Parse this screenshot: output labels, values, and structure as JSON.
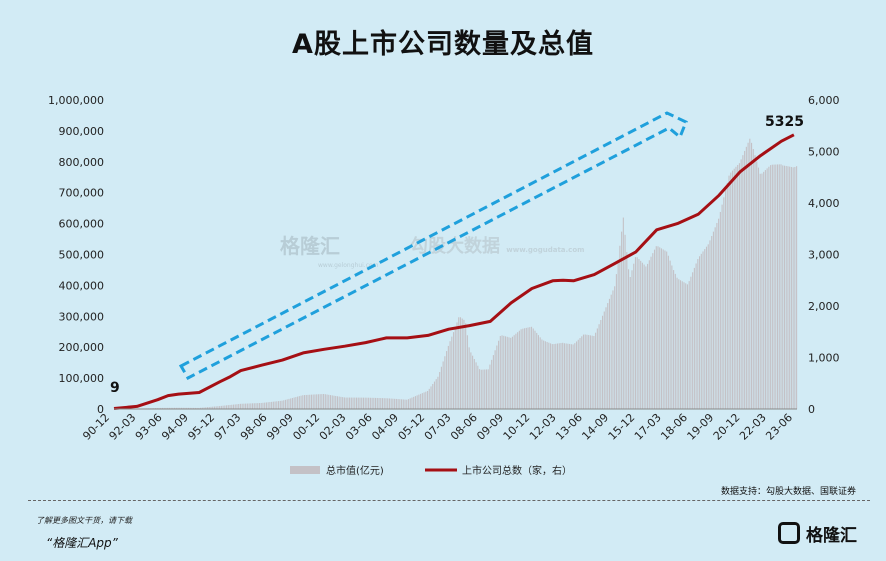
{
  "title": "A股上市公司数量及总值",
  "watermark": {
    "brand": "格隆汇",
    "brand_sub": "www.gelonghui.com",
    "partner": "勾股大数据",
    "partner_sub": "www.gogudata.com"
  },
  "footer": {
    "note": "了解更多图文干货，请下载",
    "app": "“格隆汇App”",
    "source": "数据支持：勾股大数据、国联证券",
    "logo": "格隆汇"
  },
  "colors": {
    "bars": "#c4c1c6",
    "line": "#a50f14",
    "arrow": "#1fa0dc",
    "background": "#d2ebf5"
  },
  "chart_data": {
    "type": "bar+line",
    "title": "A股上市公司数量及总值",
    "x_ticks": [
      "90-12",
      "92-03",
      "93-06",
      "94-09",
      "95-12",
      "97-03",
      "98-06",
      "99-09",
      "00-12",
      "02-03",
      "03-06",
      "04-09",
      "05-12",
      "07-03",
      "08-06",
      "09-09",
      "10-12",
      "12-03",
      "13-06",
      "14-09",
      "15-12",
      "17-03",
      "18-06",
      "19-09",
      "20-12",
      "22-03",
      "23-06"
    ],
    "y_left": {
      "ticks": [
        "0",
        "100,000",
        "200,000",
        "300,000",
        "400,000",
        "500,000",
        "600,000",
        "700,000",
        "800,000",
        "900,000",
        "1,000,000"
      ],
      "lim": [
        0,
        1000000
      ],
      "unit": "亿元"
    },
    "y_right": {
      "ticks": [
        "0",
        "1,000",
        "2,000",
        "3,000",
        "4,000",
        "5,000",
        "6,000"
      ],
      "lim": [
        0,
        6000
      ],
      "unit": "家"
    },
    "legend": {
      "position": "bottom",
      "items": [
        "总市值(亿元)",
        "上市公司总数（家，右）"
      ]
    },
    "annotations": [
      {
        "text": "9",
        "at": "start"
      },
      {
        "text": "5325",
        "at": "end"
      }
    ],
    "series": [
      {
        "name": "总市值(亿元)",
        "kind": "bar",
        "axis": "left",
        "x": [
          1990.9,
          1992.0,
          1993.0,
          1994.0,
          1995.0,
          1996.0,
          1997.0,
          1998.0,
          1999.0,
          2000.0,
          2001.0,
          2002.0,
          2003.0,
          2004.0,
          2005.0,
          2006.0,
          2006.5,
          2007.0,
          2007.5,
          2007.8,
          2008.0,
          2008.5,
          2008.9,
          2009.5,
          2010.0,
          2010.5,
          2011.0,
          2011.5,
          2012.0,
          2012.5,
          2013.0,
          2013.5,
          2014.0,
          2014.5,
          2015.0,
          2015.4,
          2015.7,
          2016.0,
          2016.5,
          2017.0,
          2017.5,
          2018.0,
          2018.5,
          2019.0,
          2019.5,
          2020.0,
          2020.5,
          2021.0,
          2021.5,
          2022.0,
          2022.5,
          2023.0,
          2023.6
        ],
        "values": [
          100,
          1000,
          3500,
          4000,
          3500,
          10000,
          18000,
          20000,
          27000,
          45000,
          50000,
          40000,
          38000,
          35000,
          30000,
          60000,
          110000,
          220000,
          320000,
          300000,
          200000,
          130000,
          130000,
          240000,
          230000,
          260000,
          270000,
          230000,
          220000,
          230000,
          220000,
          250000,
          240000,
          320000,
          400000,
          620000,
          420000,
          500000,
          470000,
          550000,
          540000,
          450000,
          420000,
          500000,
          540000,
          620000,
          760000,
          800000,
          890000,
          780000,
          830000,
          850000,
          820000
        ]
      },
      {
        "name": "上市公司总数（家，右）",
        "kind": "line",
        "axis": "right",
        "x": [
          1990.9,
          1992.0,
          1993.0,
          1993.5,
          1994.0,
          1995.0,
          1996.0,
          1996.5,
          1997.0,
          1998.0,
          1999.0,
          2000.0,
          2001.0,
          2002.0,
          2003.0,
          2004.0,
          2005.0,
          2006.0,
          2007.0,
          2008.0,
          2009.0,
          2010.0,
          2011.0,
          2012.0,
          2012.5,
          2013.0,
          2014.0,
          2015.0,
          2016.0,
          2017.0,
          2018.0,
          2019.0,
          2020.0,
          2021.0,
          2022.0,
          2023.0,
          2023.6
        ],
        "values": [
          9,
          50,
          180,
          260,
          290,
          320,
          530,
          630,
          745,
          850,
          950,
          1090,
          1160,
          1220,
          1290,
          1380,
          1380,
          1430,
          1550,
          1620,
          1700,
          2060,
          2340,
          2490,
          2500,
          2490,
          2610,
          2830,
          3050,
          3480,
          3600,
          3780,
          4150,
          4600,
          4920,
          5200,
          5325
        ]
      }
    ]
  }
}
